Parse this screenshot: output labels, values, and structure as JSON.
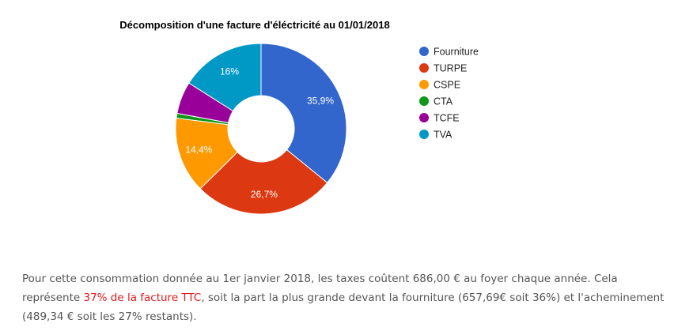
{
  "chart_data": {
    "type": "pie",
    "donut": true,
    "title": "Décomposition d'une facture d'éléctricité au 01/01/2018",
    "categories": [
      "Fourniture",
      "TURPE",
      "CSPE",
      "CTA",
      "TCFE",
      "TVA"
    ],
    "values": [
      35.9,
      26.7,
      14.4,
      0.9,
      6.1,
      16.0
    ],
    "labels": [
      "35,9%",
      "26,7%",
      "14,4%",
      "",
      "",
      "16%"
    ],
    "colors": [
      "#3366cc",
      "#dc3912",
      "#ff9900",
      "#109618",
      "#990099",
      "#0099c6"
    ],
    "legend_position": "right"
  },
  "caption": {
    "part1": "Pour cette consommation donnée au 1er janvier 2018, les taxes coûtent 686,00 € au foyer chaque année. Cela représente ",
    "highlight": "37% de la facture TTC",
    "part2": ", soit la part la plus grande devant la fourniture (657,69€ soit 36%) et l'acheminement (489,34 € soit les 27% restants)."
  }
}
